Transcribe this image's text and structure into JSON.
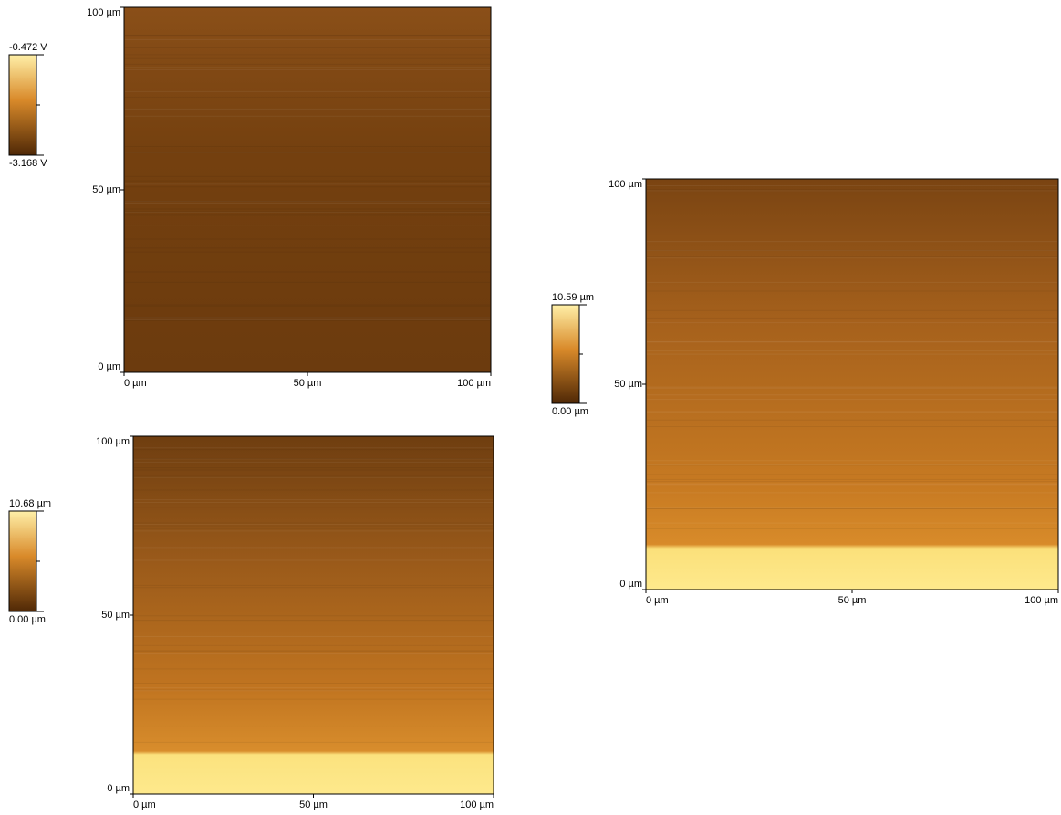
{
  "panels": [
    {
      "colorbar": {
        "max": "-0.472 V",
        "min": "-3.168 V"
      },
      "y_ticks": [
        "0 µm",
        "50 µm",
        "100 µm"
      ],
      "x_ticks": [
        "0 µm",
        "50 µm",
        "100 µm"
      ]
    },
    {
      "colorbar": {
        "max": "10.68 µm",
        "min": "0.00 µm"
      },
      "y_ticks": [
        "0 µm",
        "50 µm",
        "100 µm"
      ],
      "x_ticks": [
        "0 µm",
        "50 µm",
        "100 µm"
      ]
    },
    {
      "colorbar": {
        "max": "10.59 µm",
        "min": "0.00 µm"
      },
      "y_ticks": [
        "0 µm",
        "50 µm",
        "100 µm"
      ],
      "x_ticks": [
        "0 µm",
        "50 µm",
        "100 µm"
      ]
    }
  ]
}
